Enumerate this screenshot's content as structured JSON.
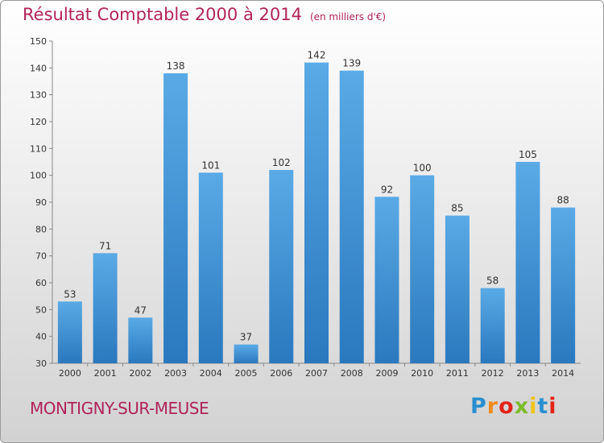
{
  "header": {
    "title": "Résultat Comptable 2000 à 2014",
    "subtitle": "(en milliers d'€)"
  },
  "footer": {
    "commune": "MONTIGNY-SUR-MEUSE",
    "logo_text": "Proxiti",
    "logo_colors": [
      "#2a8fd0",
      "#f08a1c",
      "#e2231a",
      "#7dbb2a",
      "#f0c419",
      "#2a8fd0",
      "#e2231a"
    ]
  },
  "colors": {
    "title": "#b0245a",
    "bar_top": "#5aaae6",
    "bar_bottom": "#2a78be"
  },
  "chart_data": {
    "type": "bar",
    "title": "Résultat Comptable 2000 à 2014",
    "subtitle": "(en milliers d'€)",
    "categories": [
      "2000",
      "2001",
      "2002",
      "2003",
      "2004",
      "2005",
      "2006",
      "2007",
      "2008",
      "2009",
      "2010",
      "2011",
      "2012",
      "2013",
      "2014"
    ],
    "values": [
      53,
      71,
      47,
      138,
      101,
      37,
      102,
      142,
      139,
      92,
      100,
      85,
      58,
      105,
      88
    ],
    "ylim": [
      30,
      150
    ],
    "yticks": [
      30,
      40,
      50,
      60,
      70,
      80,
      90,
      100,
      110,
      120,
      130,
      140,
      150
    ],
    "grid": false,
    "data_labels": true
  }
}
